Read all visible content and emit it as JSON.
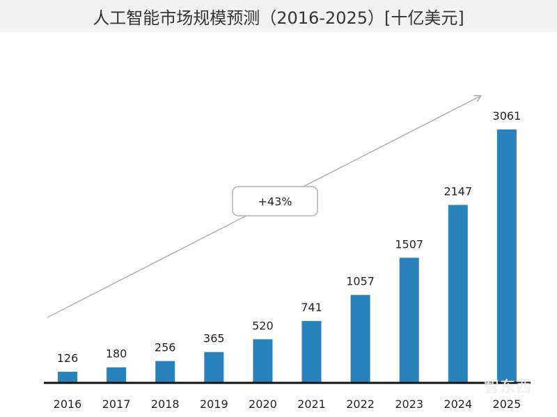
{
  "chart_data": {
    "type": "bar",
    "title": "人工智能市场规模预测（2016-2025）[十亿美元]",
    "categories": [
      "2016",
      "2017",
      "2018",
      "2019",
      "2020",
      "2021",
      "2022",
      "2023",
      "2024",
      "2025"
    ],
    "values": [
      126,
      180,
      256,
      365,
      520,
      741,
      1057,
      1507,
      2147,
      3061
    ],
    "xlabel": "",
    "ylabel": "",
    "ylim": [
      0,
      3061
    ],
    "grid": false,
    "annotation": "+43%",
    "bar_color": "#2a82bd"
  },
  "watermark": "智东西"
}
